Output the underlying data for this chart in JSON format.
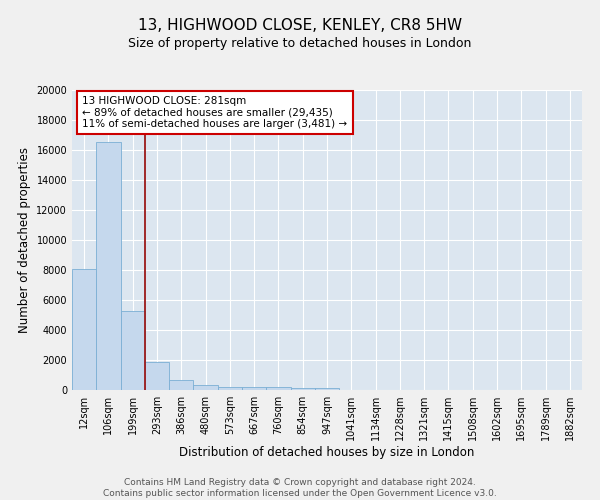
{
  "title": "13, HIGHWOOD CLOSE, KENLEY, CR8 5HW",
  "subtitle": "Size of property relative to detached houses in London",
  "xlabel": "Distribution of detached houses by size in London",
  "ylabel": "Number of detached properties",
  "categories": [
    "12sqm",
    "106sqm",
    "199sqm",
    "293sqm",
    "386sqm",
    "480sqm",
    "573sqm",
    "667sqm",
    "760sqm",
    "854sqm",
    "947sqm",
    "1041sqm",
    "1134sqm",
    "1228sqm",
    "1321sqm",
    "1415sqm",
    "1508sqm",
    "1602sqm",
    "1695sqm",
    "1789sqm",
    "1882sqm"
  ],
  "values": [
    8100,
    16500,
    5300,
    1850,
    700,
    320,
    220,
    200,
    185,
    160,
    130,
    0,
    0,
    0,
    0,
    0,
    0,
    0,
    0,
    0,
    0
  ],
  "bar_color": "#c5d8ed",
  "bar_edge_color": "#7bafd4",
  "vline_color": "#9b1a1a",
  "annotation_text": "13 HIGHWOOD CLOSE: 281sqm\n← 89% of detached houses are smaller (29,435)\n11% of semi-detached houses are larger (3,481) →",
  "annotation_box_color": "#ffffff",
  "annotation_box_edge": "#cc0000",
  "ylim": [
    0,
    20000
  ],
  "yticks": [
    0,
    2000,
    4000,
    6000,
    8000,
    10000,
    12000,
    14000,
    16000,
    18000,
    20000
  ],
  "bg_color": "#dce6f0",
  "fig_bg_color": "#f0f0f0",
  "footer": "Contains HM Land Registry data © Crown copyright and database right 2024.\nContains public sector information licensed under the Open Government Licence v3.0.",
  "title_fontsize": 11,
  "subtitle_fontsize": 9,
  "axis_label_fontsize": 8.5,
  "tick_fontsize": 7,
  "footer_fontsize": 6.5,
  "annot_fontsize": 7.5
}
